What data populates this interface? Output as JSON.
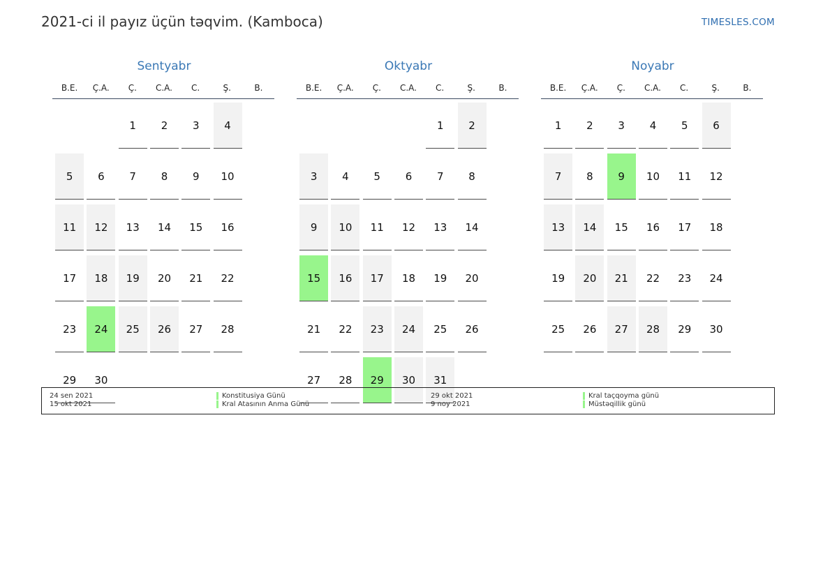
{
  "header": {
    "title": "2021-ci il payız üçün təqvim. (Kamboca)",
    "site": "TIMESLES.COM"
  },
  "weekdays": [
    "B.E.",
    "Ç.A.",
    "Ç.",
    "C.A.",
    "C.",
    "Ş.",
    "B."
  ],
  "months": [
    {
      "name": "Sentyabr",
      "start_offset": 2,
      "days": 30,
      "holidays": [
        24
      ]
    },
    {
      "name": "Oktyabr",
      "start_offset": 4,
      "days": 31,
      "holidays": [
        15,
        29
      ]
    },
    {
      "name": "Noyabr",
      "start_offset": 0,
      "days": 30,
      "holidays": [
        9
      ]
    }
  ],
  "legend": [
    {
      "date": "24 sen 2021",
      "name": "Konstitusiya Günü"
    },
    {
      "date": "15 okt 2021",
      "name": "Kral Atasının Anma Günü"
    },
    {
      "date": "29 okt 2021",
      "name": "Kral taçqoyma günü"
    },
    {
      "date": "9 noy 2021",
      "name": "Müstəqillik günü"
    }
  ],
  "colors": {
    "holiday": "#98f58c",
    "weekend": "#f2f2f2",
    "accent": "#3a78b5"
  }
}
